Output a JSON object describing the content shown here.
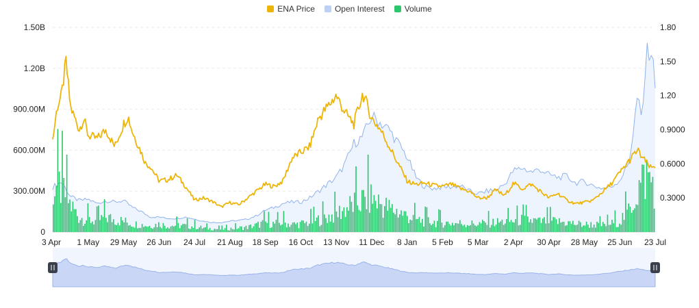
{
  "legend": {
    "items": [
      {
        "label": "ENA Price",
        "color": "#EDB409"
      },
      {
        "label": "Open Interest",
        "color": "#BCD0F4"
      },
      {
        "label": "Volume",
        "color": "#2EC770"
      }
    ]
  },
  "chart_data": {
    "type": "line",
    "title": "",
    "x_ticks": [
      "3 Apr",
      "1 May",
      "29 May",
      "26 Jun",
      "24 Jul",
      "21 Aug",
      "18 Sep",
      "16 Oct",
      "13 Nov",
      "11 Dec",
      "8 Jan",
      "5 Feb",
      "5 Mar",
      "2 Apr",
      "30 Apr",
      "28 May",
      "25 Jun",
      "23 Jul"
    ],
    "y_left_ticks": [
      "0",
      "300.00M",
      "600.00M",
      "900.00M",
      "1.20B",
      "1.50B"
    ],
    "y_right_ticks": [
      "0.3000",
      "0.6000",
      "0.9000",
      "1.20",
      "1.50",
      "1.80"
    ],
    "ylim_left": [
      0,
      1500000000
    ],
    "ylim_right": [
      0,
      1.8
    ],
    "x_range_weeks": [
      0,
      68
    ],
    "grid": true,
    "legend_position": "top-center",
    "series": [
      {
        "name": "ENA Price",
        "axis": "right",
        "color": "#EDB409",
        "x_weeks": [
          0,
          0.5,
          1,
          1.5,
          2,
          3,
          3.5,
          4,
          5,
          6,
          7,
          8,
          8.5,
          9,
          10,
          10.5,
          11,
          12,
          13,
          14,
          15,
          16,
          17,
          18,
          19,
          20,
          21,
          22,
          23,
          24,
          25,
          26,
          27,
          28,
          29,
          30,
          31,
          32,
          33,
          34,
          35,
          36,
          37,
          38,
          39,
          40,
          40.5,
          41,
          42,
          43,
          44,
          45,
          46,
          47,
          48,
          49,
          50,
          51,
          52,
          53,
          54,
          55,
          56,
          57,
          58,
          59,
          60,
          61,
          62,
          63,
          64,
          65,
          66,
          66.5,
          67,
          67.5,
          68
        ],
        "values": [
          0.81,
          1.1,
          1.2,
          1.5,
          1.1,
          0.9,
          1.0,
          0.85,
          0.82,
          0.9,
          0.75,
          0.95,
          1.02,
          0.88,
          0.7,
          0.6,
          0.58,
          0.45,
          0.46,
          0.5,
          0.4,
          0.28,
          0.3,
          0.27,
          0.22,
          0.26,
          0.24,
          0.3,
          0.36,
          0.42,
          0.4,
          0.45,
          0.65,
          0.7,
          0.75,
          1.0,
          1.1,
          1.2,
          1.05,
          0.95,
          1.22,
          1.0,
          0.9,
          0.75,
          0.6,
          0.45,
          0.43,
          0.42,
          0.43,
          0.41,
          0.4,
          0.42,
          0.38,
          0.36,
          0.3,
          0.3,
          0.37,
          0.32,
          0.43,
          0.38,
          0.42,
          0.36,
          0.3,
          0.34,
          0.28,
          0.25,
          0.26,
          0.28,
          0.35,
          0.42,
          0.52,
          0.62,
          0.72,
          0.66,
          0.61,
          0.56,
          0.58
        ]
      },
      {
        "name": "Open Interest",
        "axis": "left",
        "color": "#8FB2EC",
        "x_weeks": [
          0,
          1,
          2,
          3,
          4,
          5,
          6,
          7,
          8,
          9,
          10,
          11,
          12,
          13,
          14,
          15,
          16,
          17,
          18,
          19,
          20,
          21,
          22,
          23,
          24,
          25,
          26,
          27,
          28,
          29,
          30,
          31,
          32,
          33,
          34,
          35,
          36,
          37,
          38,
          39,
          40,
          41,
          42,
          43,
          44,
          45,
          46,
          47,
          48,
          49,
          50,
          51,
          52,
          53,
          54,
          55,
          56,
          57,
          58,
          59,
          60,
          61,
          62,
          63,
          64,
          65,
          65.5,
          66,
          66.5,
          67,
          67.5,
          68
        ],
        "values": [
          330000000,
          370000000,
          260000000,
          230000000,
          240000000,
          210000000,
          230000000,
          220000000,
          230000000,
          180000000,
          150000000,
          110000000,
          110000000,
          100000000,
          100000000,
          110000000,
          95000000,
          80000000,
          70000000,
          70000000,
          80000000,
          85000000,
          95000000,
          120000000,
          160000000,
          180000000,
          210000000,
          220000000,
          220000000,
          250000000,
          300000000,
          350000000,
          400000000,
          500000000,
          650000000,
          700000000,
          850000000,
          800000000,
          750000000,
          650000000,
          550000000,
          400000000,
          330000000,
          320000000,
          330000000,
          330000000,
          340000000,
          300000000,
          280000000,
          300000000,
          310000000,
          350000000,
          450000000,
          470000000,
          440000000,
          460000000,
          420000000,
          400000000,
          410000000,
          360000000,
          370000000,
          340000000,
          320000000,
          330000000,
          380000000,
          500000000,
          720000000,
          1000000000,
          800000000,
          1300000000,
          1350000000,
          1100000000
        ]
      },
      {
        "name": "Volume",
        "axis": "left",
        "color": "#2EC770",
        "x_weeks": [
          0,
          1,
          2,
          3,
          4,
          5,
          6,
          7,
          8,
          9,
          10,
          11,
          12,
          13,
          14,
          15,
          16,
          17,
          18,
          19,
          20,
          21,
          22,
          23,
          24,
          25,
          26,
          27,
          28,
          29,
          30,
          31,
          32,
          33,
          34,
          35,
          36,
          37,
          38,
          39,
          40,
          41,
          42,
          43,
          44,
          45,
          46,
          47,
          48,
          49,
          50,
          51,
          52,
          53,
          54,
          55,
          56,
          57,
          58,
          59,
          60,
          61,
          62,
          63,
          64,
          65,
          66,
          67,
          68
        ],
        "values": [
          320000000,
          330000000,
          200000000,
          110000000,
          90000000,
          80000000,
          110000000,
          90000000,
          80000000,
          60000000,
          55000000,
          45000000,
          60000000,
          45000000,
          50000000,
          45000000,
          40000000,
          30000000,
          25000000,
          20000000,
          25000000,
          30000000,
          35000000,
          50000000,
          70000000,
          60000000,
          70000000,
          55000000,
          60000000,
          70000000,
          90000000,
          110000000,
          130000000,
          170000000,
          200000000,
          230000000,
          250000000,
          210000000,
          170000000,
          150000000,
          120000000,
          90000000,
          80000000,
          75000000,
          70000000,
          65000000,
          65000000,
          60000000,
          60000000,
          65000000,
          70000000,
          75000000,
          80000000,
          90000000,
          85000000,
          75000000,
          80000000,
          75000000,
          70000000,
          60000000,
          55000000,
          55000000,
          50000000,
          60000000,
          80000000,
          150000000,
          300000000,
          420000000,
          350000000
        ]
      }
    ]
  },
  "navigator": {
    "left_handle_icon": "drag-handle-icon",
    "right_handle_icon": "drag-handle-icon",
    "selected_start": 0,
    "selected_end": 1
  }
}
